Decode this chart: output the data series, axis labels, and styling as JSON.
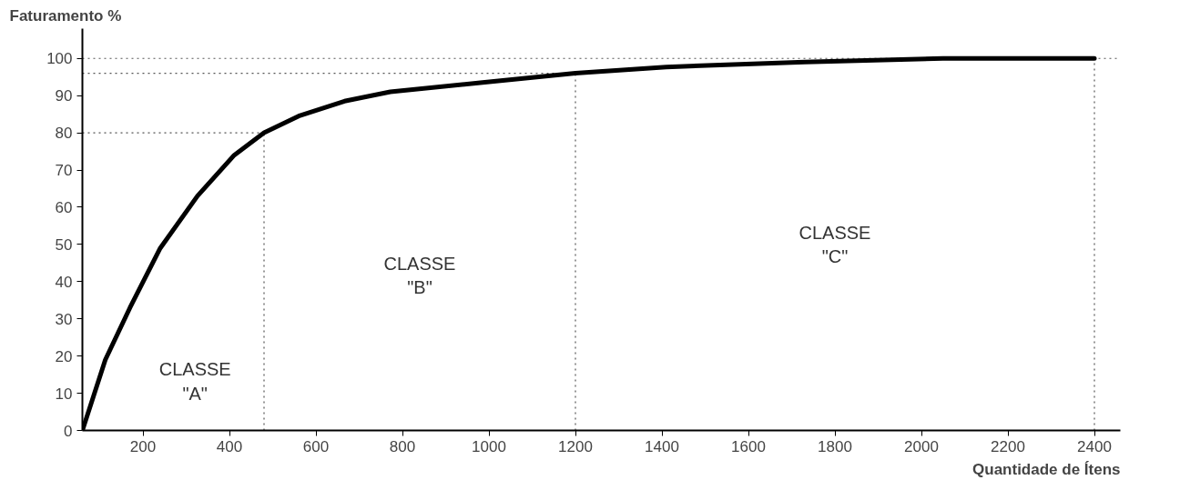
{
  "chart_data": {
    "type": "line",
    "xlabel": "Quantidade de Ítens",
    "ylabel": "Faturamento %",
    "x": [
      60,
      113,
      170,
      240,
      326,
      411,
      480,
      560,
      666,
      772,
      985,
      1200,
      1410,
      1730,
      2050,
      2400
    ],
    "series": [
      {
        "color": "#000000",
        "values": [
          0,
          19,
          33,
          49,
          63,
          74,
          80,
          84.5,
          88.5,
          91,
          93.5,
          96,
          97.7,
          99,
          100,
          100
        ]
      }
    ],
    "xlim": [
      60,
      2460
    ],
    "ylim": [
      0,
      108
    ],
    "xticks": [
      200,
      400,
      600,
      800,
      1000,
      1200,
      1400,
      1600,
      1800,
      2000,
      2200,
      2400
    ],
    "yticks": [
      0,
      10,
      20,
      30,
      40,
      50,
      60,
      70,
      80,
      90,
      100
    ],
    "ref_lines": [
      {
        "axis": "x",
        "value": 480,
        "line_style": "dotted"
      },
      {
        "axis": "x",
        "value": 1200,
        "line_style": "dotted"
      },
      {
        "axis": "x",
        "value": 2400,
        "line_style": "dotted"
      },
      {
        "axis": "y",
        "value": 80,
        "line_style": "dotted"
      },
      {
        "axis": "y",
        "value": 96,
        "line_style": "dotted"
      },
      {
        "axis": "y",
        "value": 100,
        "line_style": "dotted"
      }
    ],
    "annotations": [
      "CLASSE\n\"A\"",
      "CLASSE\n\"B\"",
      "CLASSE\n\"C\""
    ],
    "grid": false,
    "marker": "none",
    "line_style": "solid"
  }
}
